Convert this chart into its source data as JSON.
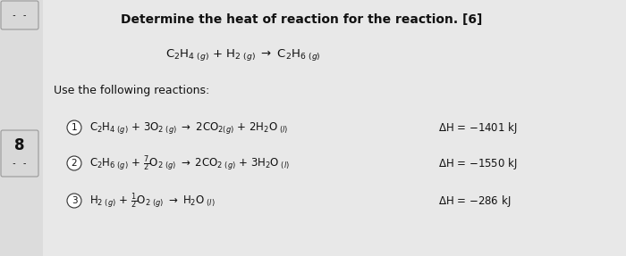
{
  "title": "Determine the heat of reaction for the reaction. [6]",
  "subtitle": "Use the following reactions:",
  "bg_color": "#e8e8e8",
  "left_bg": "#e0e0e0",
  "box_color": "#d0d0d0",
  "box_edge": "#888888",
  "text_color": "#111111",
  "num_label": "8",
  "fig_width": 7.0,
  "fig_height": 2.87,
  "dpi": 100
}
